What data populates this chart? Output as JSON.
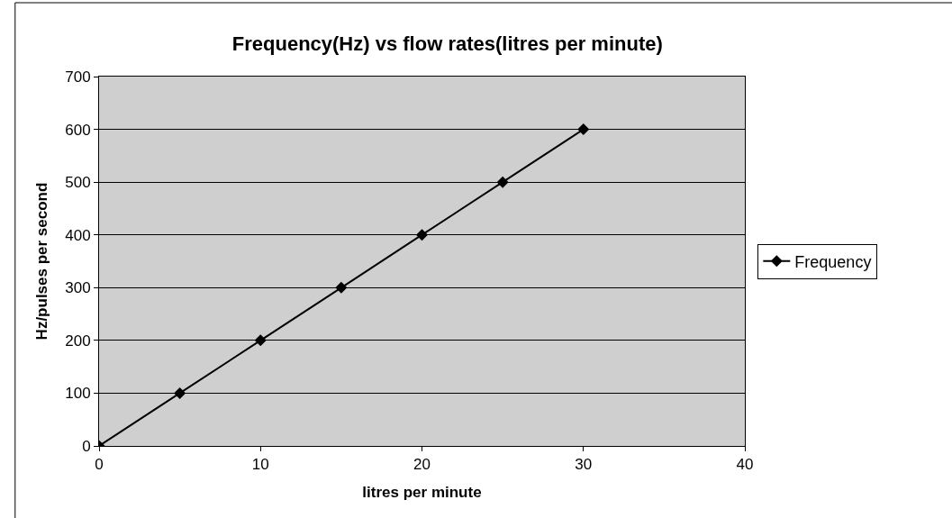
{
  "chart_data": {
    "type": "line",
    "title": "Frequency(Hz) vs flow rates(litres per minute)",
    "xlabel": "litres per minute",
    "ylabel": "Hz/pulses per second",
    "x": [
      0,
      5,
      10,
      15,
      20,
      25,
      30
    ],
    "series": [
      {
        "name": "Frequency",
        "color": "#000000",
        "values": [
          0,
          100,
          200,
          300,
          400,
          500,
          600
        ]
      }
    ],
    "xlim": [
      0,
      40
    ],
    "xticks": [
      0,
      10,
      20,
      30,
      40
    ],
    "ylim": [
      0,
      700
    ],
    "yticks": [
      0,
      100,
      200,
      300,
      400,
      500,
      600,
      700
    ],
    "grid": "y",
    "legend": "right",
    "marker": "diamond",
    "line_style": "solid"
  }
}
